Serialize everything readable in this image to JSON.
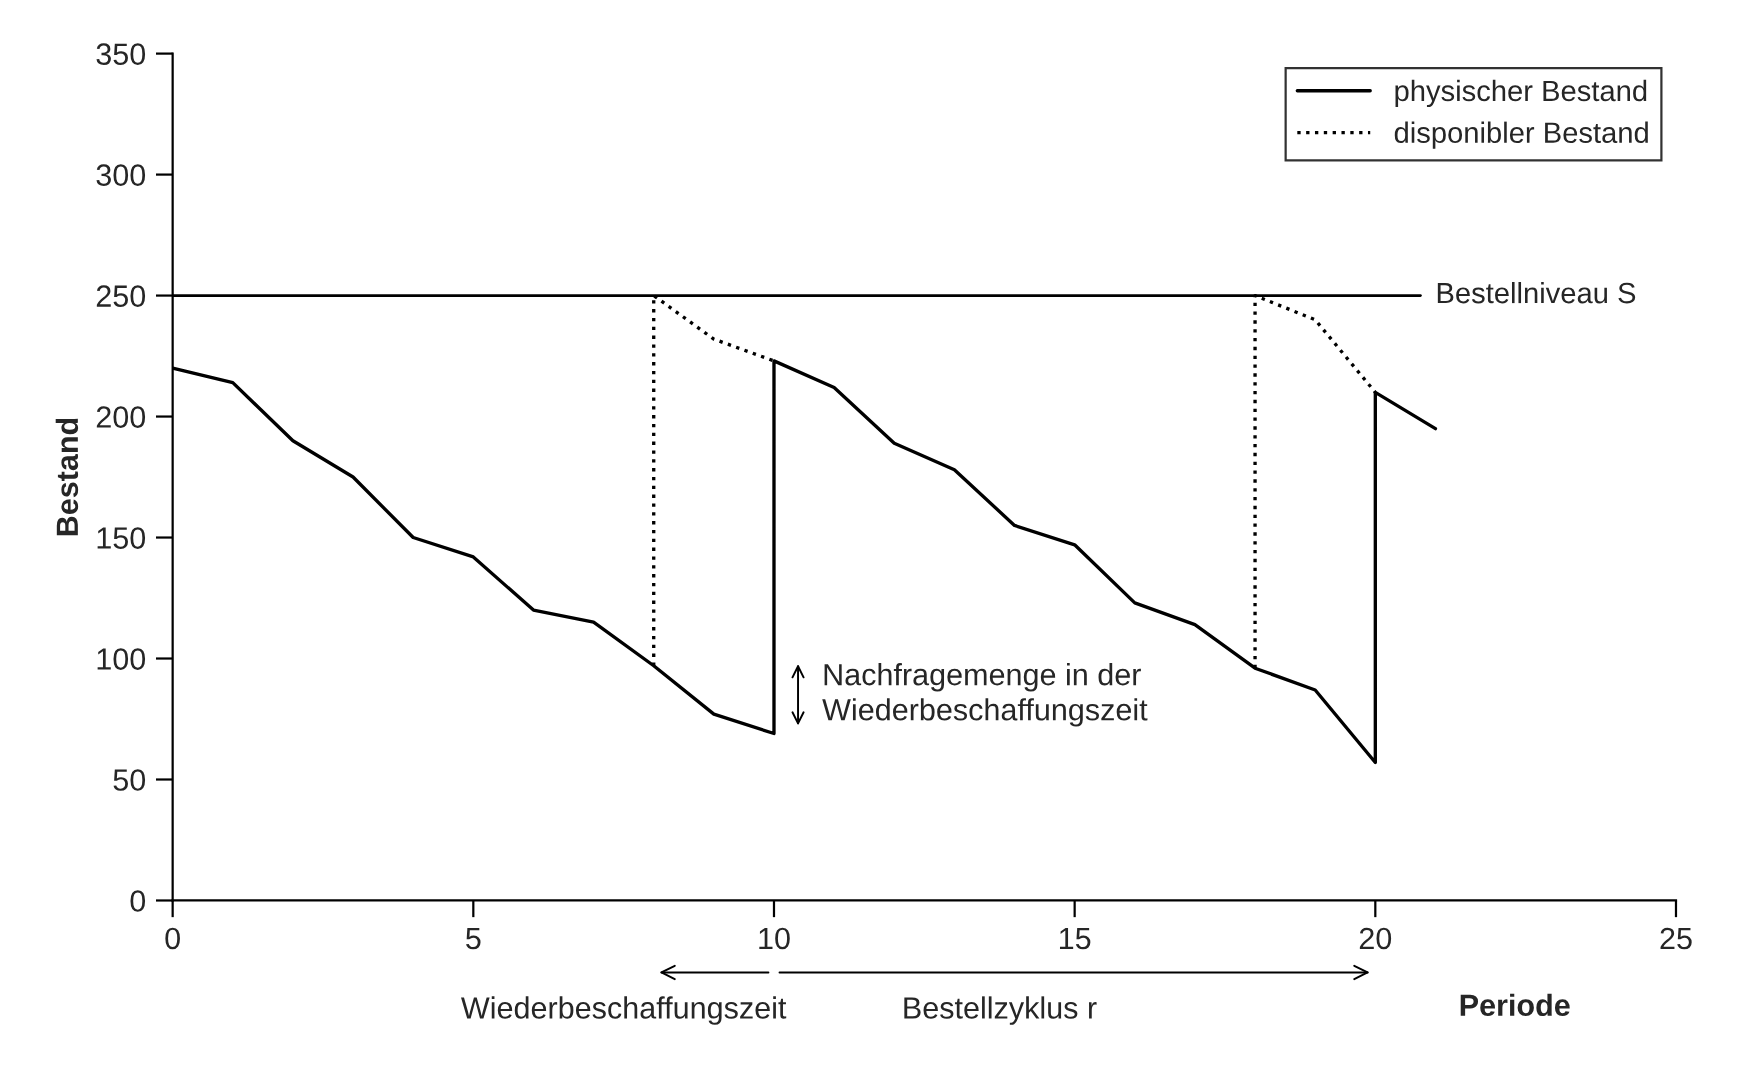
{
  "chart_data": {
    "type": "line",
    "series": [
      {
        "name": "physischer Bestand",
        "color": "#000000",
        "line_style": "solid",
        "x": [
          0,
          1,
          2,
          3,
          4,
          5,
          6,
          7,
          8,
          9,
          10,
          10,
          11,
          12,
          13,
          14,
          15,
          16,
          17,
          18,
          19,
          20,
          20,
          21
        ],
        "values": [
          220,
          214,
          190,
          175,
          150,
          142,
          120,
          115,
          97,
          77,
          69,
          223,
          212,
          189,
          178,
          155,
          147,
          123,
          114,
          96,
          87,
          57,
          210,
          195
        ]
      },
      {
        "name": "disponibler Bestand",
        "color": "#000000",
        "line_style": "dotted",
        "x": [
          8,
          8,
          9,
          10
        ],
        "values": [
          97,
          250,
          232,
          223
        ]
      },
      {
        "color": "#000000",
        "line_style": "dotted",
        "x": [
          18,
          18,
          19,
          20
        ],
        "values": [
          96,
          250,
          240,
          210
        ]
      }
    ],
    "xlabel": "Periode",
    "ylabel": "Bestand",
    "xlim": [
      0,
      25
    ],
    "xticks": [
      0,
      5,
      10,
      15,
      20,
      25
    ],
    "ylim": [
      0,
      350
    ],
    "yticks": [
      0,
      50,
      100,
      150,
      200,
      250,
      300,
      350
    ],
    "ref_lines": [
      {
        "axis": "y",
        "value": 250,
        "label": "Bestellniveau S",
        "color": "#000000",
        "line_style": "solid"
      }
    ],
    "annotations": [
      {
        "text": "Nachfragemenge in der\nWiederbeschaffungszeit",
        "x": 10,
        "y": 85
      },
      "Wiederbeschaffungszeit",
      "Bestellzyklus r"
    ],
    "legend": "top right",
    "grid": false,
    "marker": "none"
  }
}
